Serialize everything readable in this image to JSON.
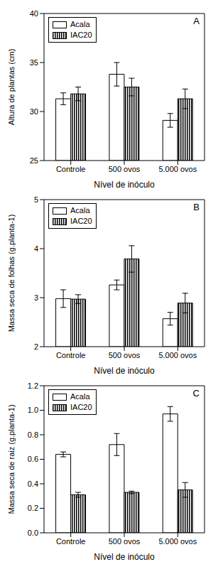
{
  "chart_data": [
    {
      "type": "bar",
      "title": "A",
      "x_label": "Nível de inóculo",
      "y_label": "Altura de plantas  (cm)",
      "categories": [
        "Controle",
        "500 ovos",
        "5.000 ovos"
      ],
      "series": [
        {
          "name": "Acala",
          "color": "#ffffff",
          "values": [
            31.3,
            33.8,
            29.1
          ],
          "errors": [
            0.6,
            1.2,
            0.7
          ]
        },
        {
          "name": "IAC20",
          "color": "#000000",
          "values": [
            31.8,
            32.5,
            31.3
          ],
          "errors": [
            0.7,
            0.9,
            1.0
          ]
        }
      ],
      "ylim": [
        25,
        40
      ],
      "yticks": [
        25,
        30,
        35,
        40
      ],
      "legend": "upper left"
    },
    {
      "type": "bar",
      "title": "B",
      "x_label": "Nível de inóculo",
      "y_label": "Massa seca de folhas  (g.planta-1)",
      "categories": [
        "Controle",
        "500 ovos",
        "5.000 ovos"
      ],
      "series": [
        {
          "name": "Acala",
          "color": "#ffffff",
          "values": [
            2.98,
            3.26,
            2.57
          ],
          "errors": [
            0.18,
            0.1,
            0.13
          ]
        },
        {
          "name": "IAC20",
          "color": "#000000",
          "values": [
            2.97,
            3.79,
            2.89
          ],
          "errors": [
            0.09,
            0.27,
            0.2
          ]
        }
      ],
      "ylim": [
        2,
        5
      ],
      "yticks": [
        2,
        3,
        4,
        5
      ],
      "legend": "upper left"
    },
    {
      "type": "bar",
      "title": "C",
      "x_label": "Nível de inóculo",
      "y_label": "Massa seca de raiz  (g.planta-1)",
      "categories": [
        "Controle",
        "500 ovos",
        "5.000 ovos"
      ],
      "series": [
        {
          "name": "Acala",
          "color": "#ffffff",
          "values": [
            0.64,
            0.72,
            0.97
          ],
          "errors": [
            0.02,
            0.09,
            0.06
          ]
        },
        {
          "name": "IAC20",
          "color": "#000000",
          "values": [
            0.31,
            0.33,
            0.35
          ],
          "errors": [
            0.02,
            0.01,
            0.06
          ]
        }
      ],
      "ylim": [
        0,
        1.2
      ],
      "yticks": [
        {
          "value": 0,
          "label": "0.0"
        },
        0.2,
        0.4,
        0.6,
        0.8,
        {
          "value": 1,
          "label": "1.0"
        },
        1.2
      ],
      "legend": "upper left"
    }
  ]
}
